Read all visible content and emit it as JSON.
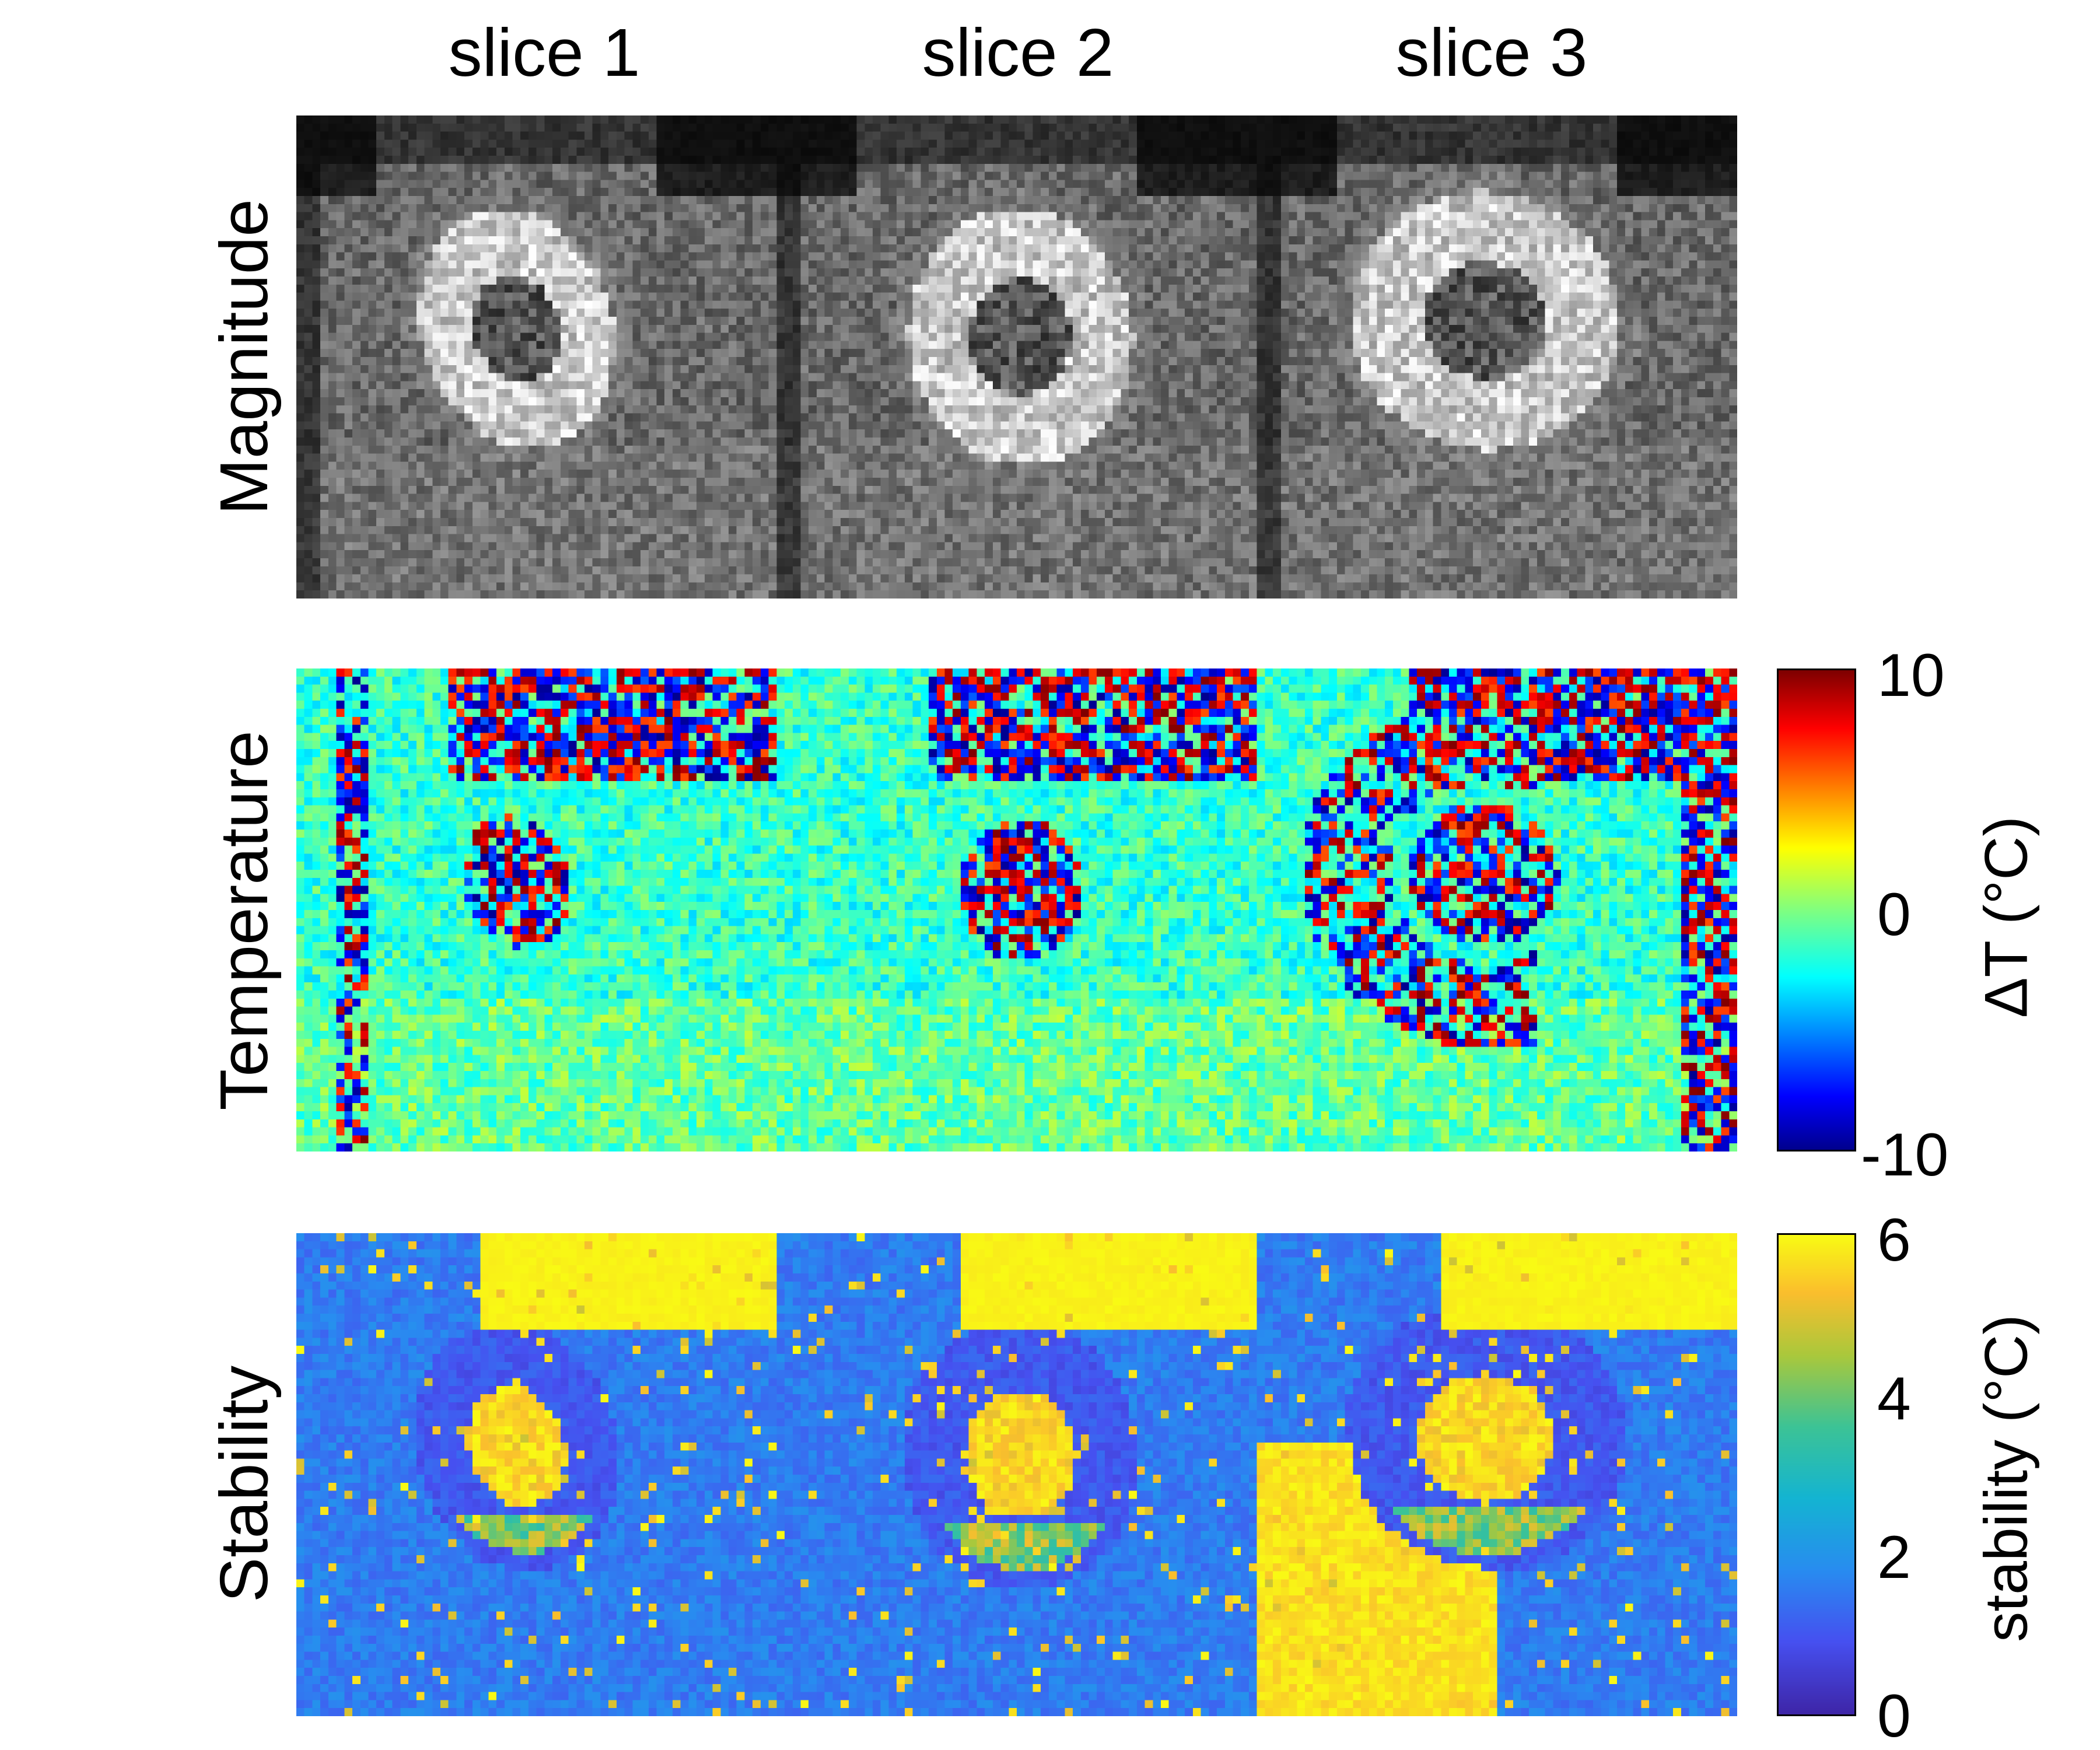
{
  "figure": {
    "column_labels": [
      "slice 1",
      "slice 2",
      "slice 3"
    ],
    "rows": [
      {
        "label": "Magnitude",
        "colormap": "gray",
        "colorbar": null
      },
      {
        "label": "Temperature",
        "colormap": "jet",
        "colorbar": {
          "label": "ΔT (°C)",
          "ticks": [
            "10",
            "0",
            "-10"
          ],
          "min": -10,
          "max": 10
        }
      },
      {
        "label": "Stability",
        "colormap": "parula",
        "colorbar": {
          "label": "stability (°C)",
          "ticks": [
            "6",
            "4",
            "2",
            "0"
          ],
          "min": 0,
          "max": 6
        }
      }
    ]
  }
}
